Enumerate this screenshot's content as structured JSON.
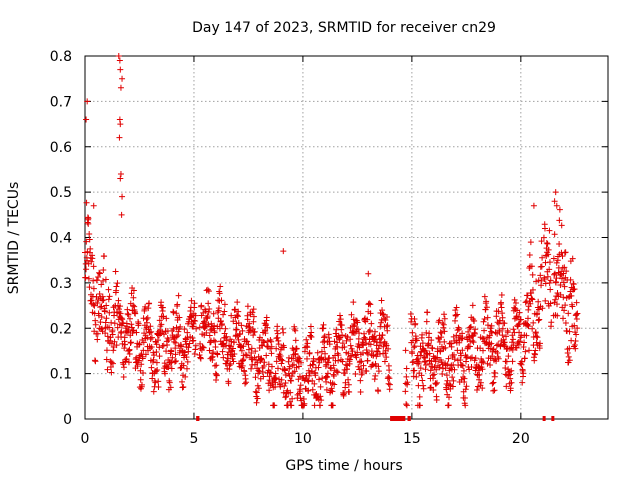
{
  "chart_data": {
    "type": "scatter",
    "title": "Day 147 of 2023, SRMTID for receiver cn29",
    "xlabel": "GPS time / hours",
    "ylabel": "SRMTID / TECUs",
    "xlim": [
      0,
      24
    ],
    "ylim": [
      0,
      0.8
    ],
    "x_ticks": [
      "0",
      "5",
      "10",
      "15",
      "20"
    ],
    "y_ticks": [
      "0",
      "0.1",
      "0.2",
      "0.3",
      "0.4",
      "0.5",
      "0.6",
      "0.7",
      "0.8"
    ],
    "grid": true,
    "marker": "plus",
    "color": "#e00000",
    "trend": [
      [
        0.0,
        0.36
      ],
      [
        0.3,
        0.3
      ],
      [
        0.8,
        0.23
      ],
      [
        1.3,
        0.21
      ],
      [
        1.8,
        0.2
      ],
      [
        2.3,
        0.18
      ],
      [
        3.0,
        0.15
      ],
      [
        3.8,
        0.16
      ],
      [
        4.5,
        0.16
      ],
      [
        5.2,
        0.2
      ],
      [
        5.8,
        0.2
      ],
      [
        6.5,
        0.17
      ],
      [
        7.3,
        0.17
      ],
      [
        8.0,
        0.14
      ],
      [
        8.6,
        0.12
      ],
      [
        9.2,
        0.1
      ],
      [
        9.8,
        0.09
      ],
      [
        10.5,
        0.1
      ],
      [
        11.0,
        0.11
      ],
      [
        11.5,
        0.13
      ],
      [
        12.0,
        0.15
      ],
      [
        12.5,
        0.15
      ],
      [
        13.2,
        0.16
      ],
      [
        14.0,
        0.15
      ],
      [
        14.5,
        0.14
      ],
      [
        15.0,
        0.13
      ],
      [
        15.8,
        0.13
      ],
      [
        16.5,
        0.13
      ],
      [
        17.2,
        0.14
      ],
      [
        18.0,
        0.15
      ],
      [
        18.8,
        0.17
      ],
      [
        19.5,
        0.16
      ],
      [
        20.0,
        0.18
      ],
      [
        20.5,
        0.24
      ],
      [
        21.0,
        0.3
      ],
      [
        21.5,
        0.33
      ],
      [
        22.0,
        0.3
      ],
      [
        22.3,
        0.24
      ],
      [
        22.6,
        0.23
      ]
    ],
    "spikes": [
      [
        0.05,
        0.66
      ],
      [
        0.1,
        0.7
      ],
      [
        0.15,
        0.43
      ],
      [
        0.4,
        0.47
      ],
      [
        1.55,
        0.8
      ],
      [
        1.6,
        0.79
      ],
      [
        1.62,
        0.77
      ],
      [
        1.65,
        0.73
      ],
      [
        1.7,
        0.75
      ],
      [
        1.6,
        0.66
      ],
      [
        1.62,
        0.65
      ],
      [
        1.58,
        0.62
      ],
      [
        1.65,
        0.54
      ],
      [
        1.62,
        0.53
      ],
      [
        1.7,
        0.49
      ],
      [
        1.68,
        0.45
      ],
      [
        9.1,
        0.37
      ],
      [
        13.0,
        0.32
      ],
      [
        20.6,
        0.47
      ],
      [
        21.6,
        0.5
      ],
      [
        21.55,
        0.48
      ],
      [
        21.65,
        0.47
      ]
    ],
    "gap_markers": [
      [
        5.1,
        5.25
      ],
      [
        14.0,
        14.7
      ],
      [
        14.8,
        14.95
      ],
      [
        21.0,
        21.05
      ],
      [
        21.4,
        21.5
      ]
    ]
  }
}
